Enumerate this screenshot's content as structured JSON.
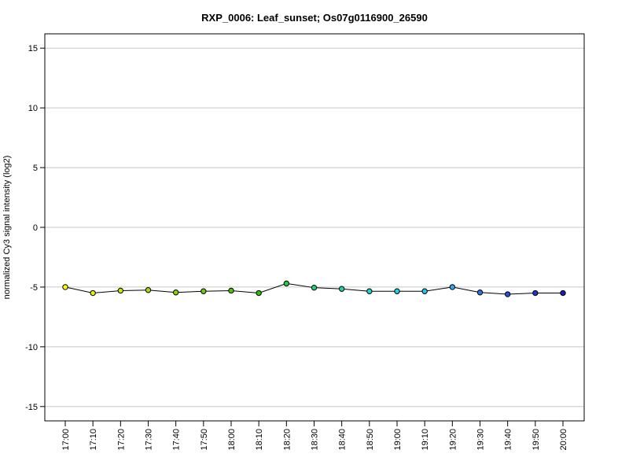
{
  "chart_data": {
    "type": "line",
    "title": "RXP_0006: Leaf_sunset; Os07g0116900_26590",
    "xlabel": "",
    "ylabel": "normalized Cy3 signal intensity (log2)",
    "ylim": [
      -16.2,
      16.2
    ],
    "yticks": [
      -15,
      -10,
      -5,
      0,
      5,
      10,
      15
    ],
    "grid": true,
    "categories": [
      "17:00",
      "17:10",
      "17:20",
      "17:30",
      "17:40",
      "17:50",
      "18:00",
      "18:10",
      "18:20",
      "18:30",
      "18:40",
      "18:50",
      "19:00",
      "19:10",
      "19:20",
      "19:30",
      "19:40",
      "19:50",
      "20:00"
    ],
    "values": [
      -5.0,
      -5.5,
      -5.3,
      -5.25,
      -5.45,
      -5.35,
      -5.3,
      -5.5,
      -4.7,
      -5.05,
      -5.15,
      -5.35,
      -5.35,
      -5.35,
      -5.0,
      -5.45,
      -5.6,
      -5.5,
      -5.5
    ],
    "point_colors": [
      "#ffff00",
      "#e6f000",
      "#c8e600",
      "#a8dc00",
      "#8cd200",
      "#6ecc00",
      "#4ec800",
      "#2ec400",
      "#1ecc3c",
      "#1ad278",
      "#18d6a8",
      "#18d8cc",
      "#18d6e6",
      "#20c8f0",
      "#30a8f0",
      "#3070e8",
      "#2850d8",
      "#1e38c8",
      "#1420b8"
    ]
  }
}
